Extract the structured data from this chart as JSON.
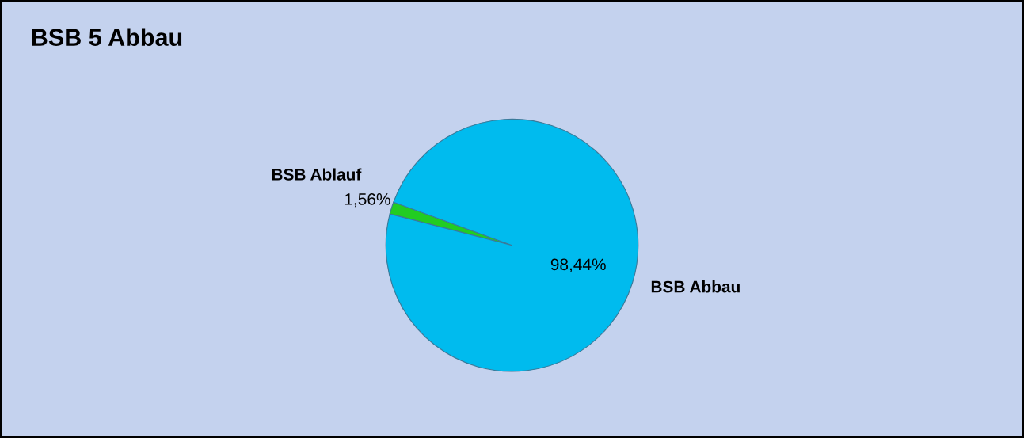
{
  "chart_data": {
    "type": "pie",
    "title": "BSB 5 Abbau",
    "categories": [
      "BSB Ablauf",
      "BSB Abbau"
    ],
    "values": [
      1.56,
      98.44
    ],
    "value_labels": [
      "1,56%",
      "98,44%"
    ],
    "colors": [
      "#22cc22",
      "#00bbee"
    ]
  }
}
